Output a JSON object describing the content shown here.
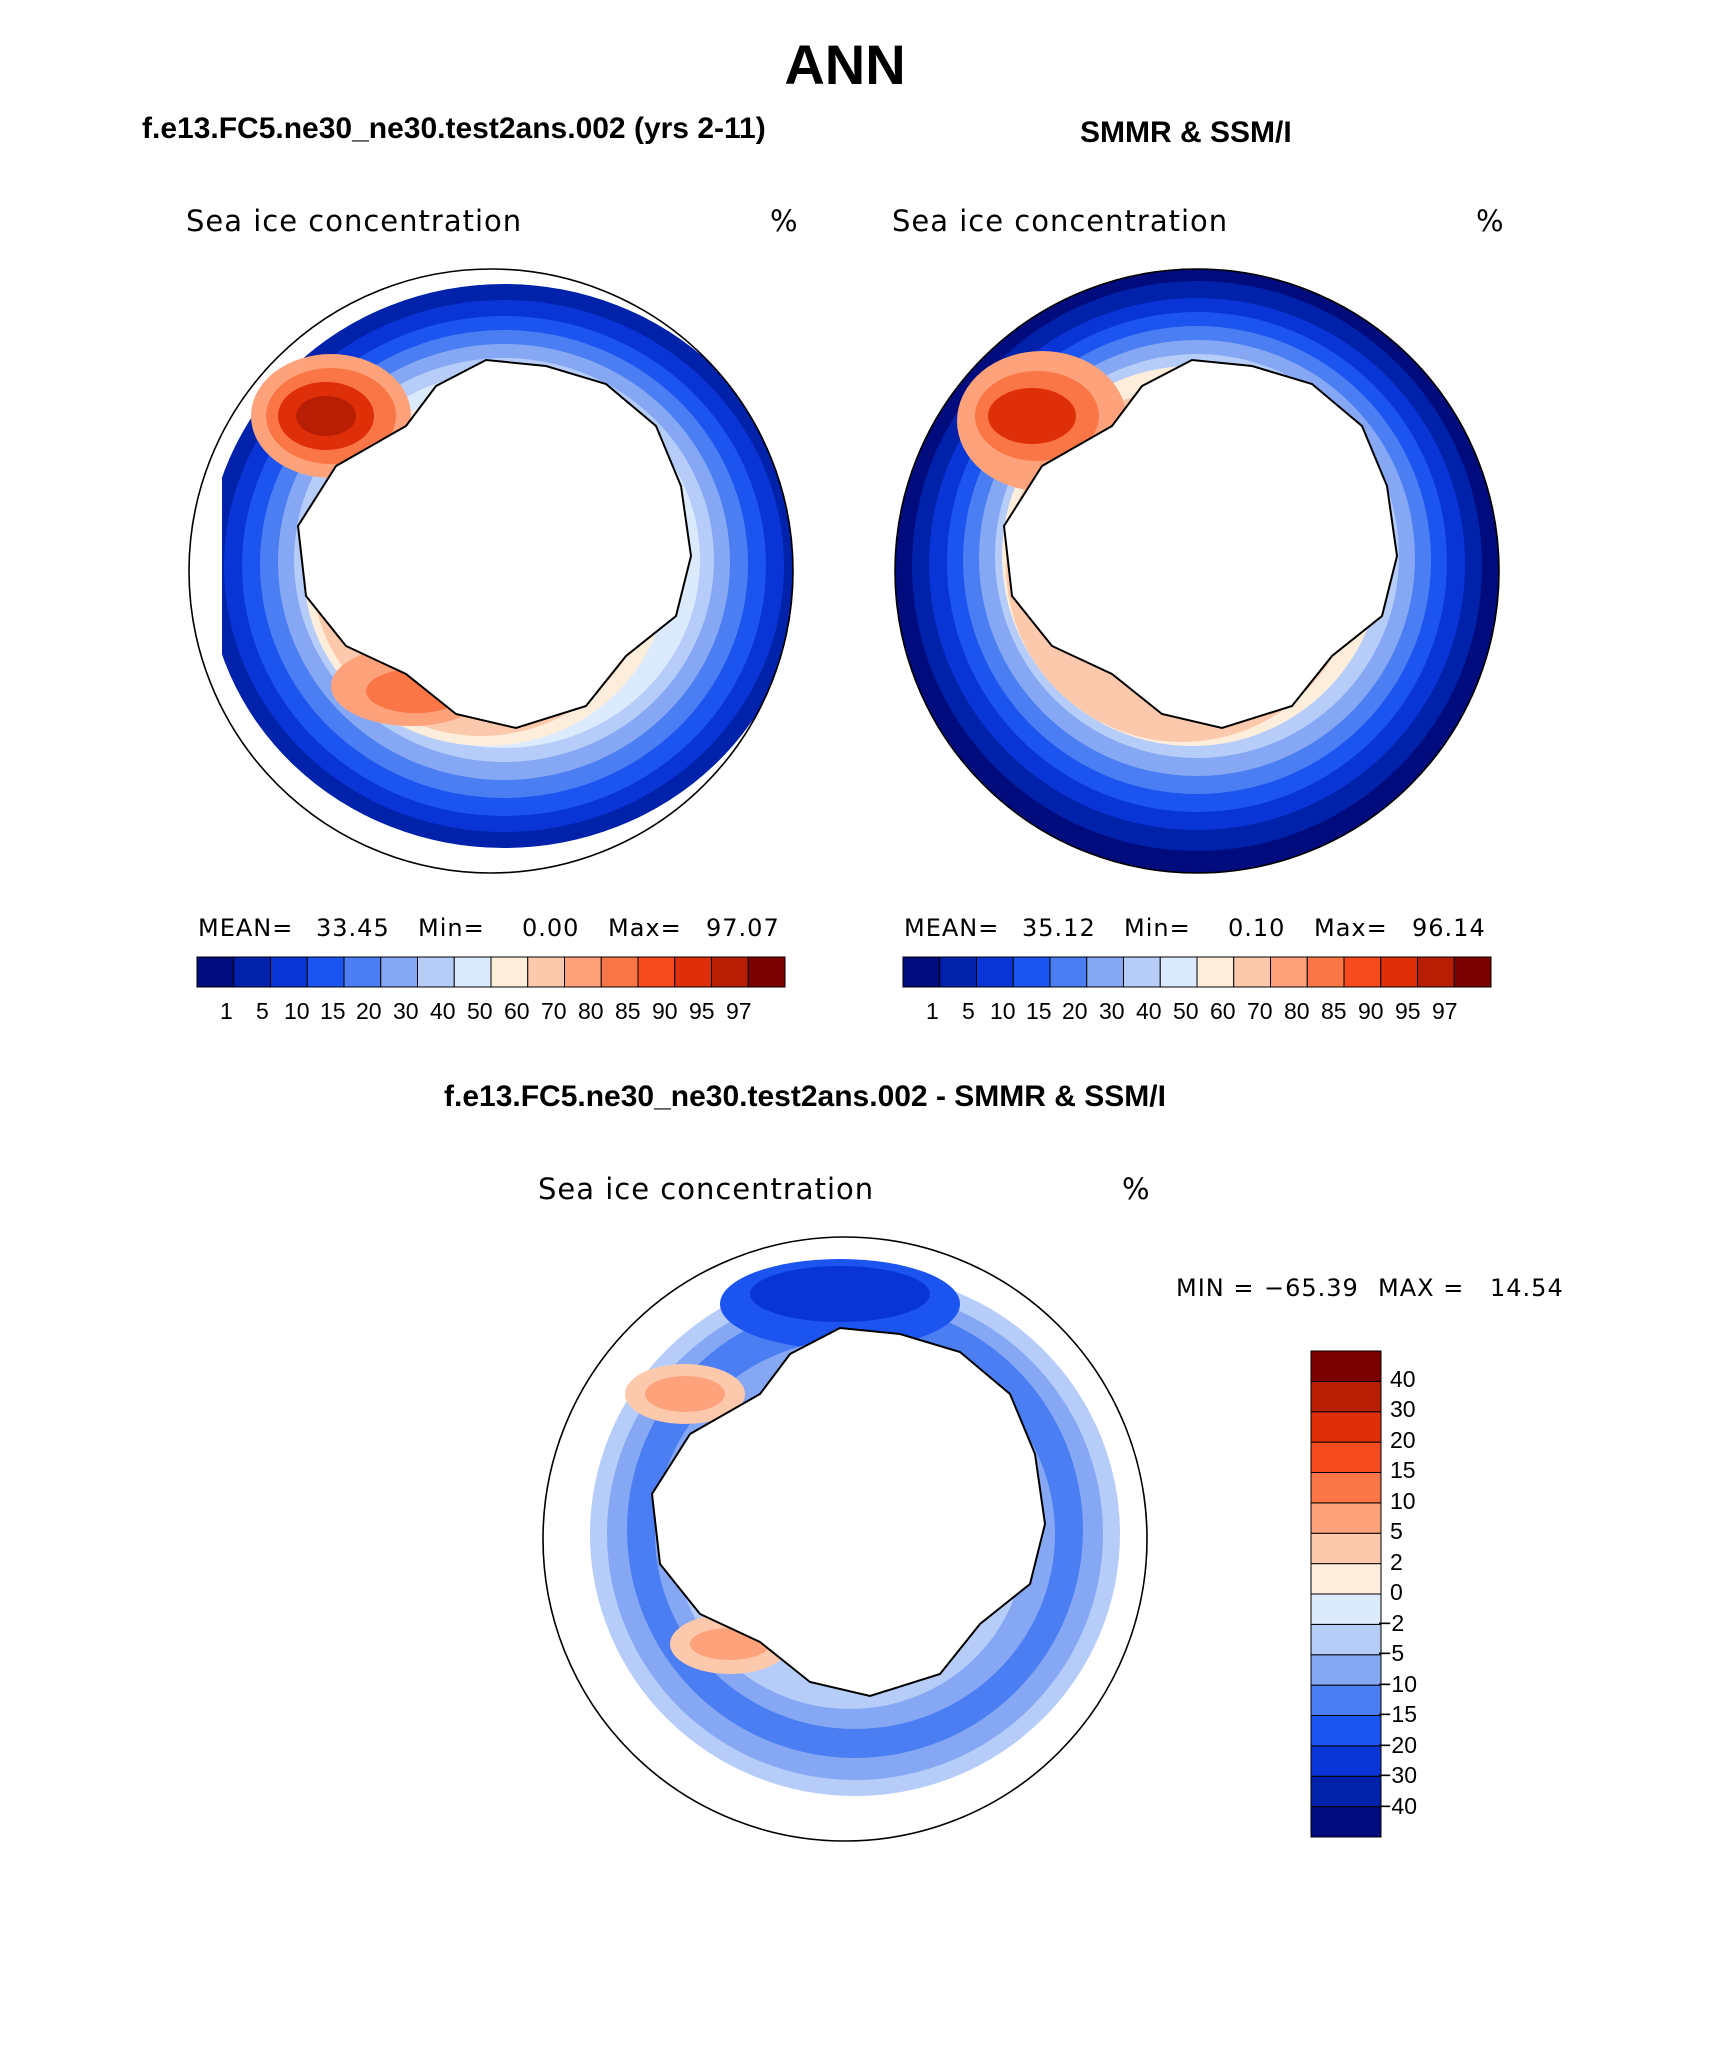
{
  "page_title": "ANN",
  "panels": {
    "model": {
      "title": "f.e13.FC5.ne30_ne30.test2ans.002 (yrs 2-11)",
      "variable": "Sea ice concentration",
      "units": "%",
      "mean_label": "MEAN=",
      "mean_value": "33.45",
      "min_label": "Min=",
      "min_value": "0.00",
      "max_label": "Max=",
      "max_value": "97.07"
    },
    "obs": {
      "title": "SMMR & SSM/I",
      "variable": "Sea ice concentration",
      "units": "%",
      "mean_label": "MEAN=",
      "mean_value": "35.12",
      "min_label": "Min=",
      "min_value": "0.10",
      "max_label": "Max=",
      "max_value": "96.14"
    },
    "diff": {
      "title": "f.e13.FC5.ne30_ne30.test2ans.002 - SMMR & SSM/I",
      "variable": "Sea ice concentration",
      "units": "%",
      "min_label": "MIN =",
      "min_value": "−65.39",
      "max_label": "MAX =",
      "max_value": "14.54"
    }
  },
  "colorbars": {
    "concentration": {
      "levels": [
        "1",
        "5",
        "10",
        "15",
        "20",
        "30",
        "40",
        "50",
        "60",
        "70",
        "80",
        "85",
        "90",
        "95",
        "97"
      ],
      "colors": [
        "#000c7d",
        "#0021a9",
        "#0935d6",
        "#1c54f0",
        "#4a7ef2",
        "#86a8f4",
        "#b6cdfa",
        "#dceafe",
        "#fdeedc",
        "#fdc9ad",
        "#fda27b",
        "#fb7647",
        "#f74a1f",
        "#de2f08",
        "#b81e04",
        "#7c0000"
      ]
    },
    "difference": {
      "levels": [
        "−40",
        "−30",
        "−20",
        "−15",
        "−10",
        "−5",
        "−2",
        "0",
        "2",
        "5",
        "10",
        "15",
        "20",
        "30",
        "40"
      ],
      "colors": [
        "#000c7d",
        "#0021a9",
        "#0935d6",
        "#1c54f0",
        "#4a7ef2",
        "#86a8f4",
        "#b6cdfa",
        "#dceafe",
        "#fdeedc",
        "#fdc9ad",
        "#fda27b",
        "#fb7647",
        "#f74a1f",
        "#de2f08",
        "#b81e04",
        "#7c0000"
      ]
    }
  }
}
